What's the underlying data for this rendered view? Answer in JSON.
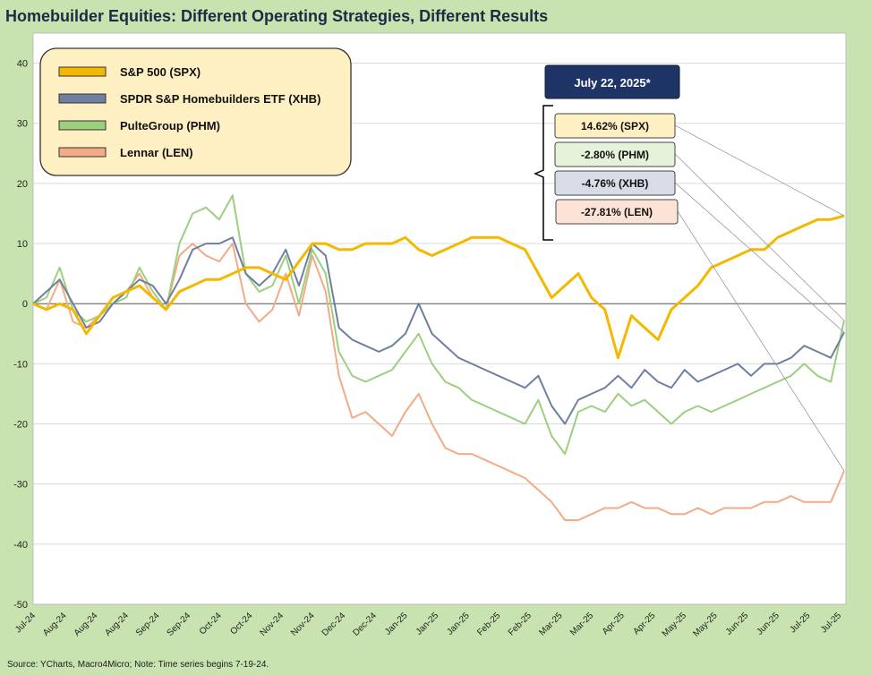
{
  "title": "Homebuilder Equities: Different Operating Strategies, Different Results",
  "source": "Source: YCharts, Macro4Micro; Note: Time series begins 7-19-24.",
  "date_box": "July 22, 2025*",
  "colors": {
    "spx": "#f5b800",
    "xhb": "#6e7fa0",
    "phm": "#9ccf7e",
    "len": "#f2ab84",
    "date_box": "#1f3466",
    "legend_bg": "#fff0c4",
    "plot_bg": "#ffffff",
    "page_bg": "#c9e3b0"
  },
  "chart_data": {
    "type": "line",
    "ylim": [
      -50,
      45
    ],
    "yticks": [
      40,
      30,
      20,
      10,
      0,
      -10,
      -20,
      -30,
      -40,
      -50
    ],
    "xtick_labels": [
      "Jul-24",
      "Aug-24",
      "Aug-24",
      "Aug-24",
      "Sep-24",
      "Sep-24",
      "Oct-24",
      "Oct-24",
      "Nov-24",
      "Nov-24",
      "Dec-24",
      "Dec-24",
      "Jan-25",
      "Jan-25",
      "Jan-25",
      "Feb-25",
      "Feb-25",
      "Mar-25",
      "Mar-25",
      "Apr-25",
      "Apr-25",
      "May-25",
      "May-25",
      "Jun-25",
      "Jun-25",
      "Jul-25",
      "Jul-25"
    ],
    "x_count": 62,
    "legend": [
      {
        "key": "spx",
        "label": "S&P 500 (SPX)"
      },
      {
        "key": "xhb",
        "label": "SPDR S&P Homebuilders ETF (XHB)"
      },
      {
        "key": "phm",
        "label": "PulteGroup (PHM)"
      },
      {
        "key": "len",
        "label": "Lennar (LEN)"
      }
    ],
    "end_labels": [
      {
        "key": "spx",
        "label": "14.62% (SPX)",
        "value": 14.62,
        "fill": "#fff0c4"
      },
      {
        "key": "phm",
        "label": "-2.80% (PHM)",
        "value": -2.8,
        "fill": "#e5f2da"
      },
      {
        "key": "xhb",
        "label": "-4.76% (XHB)",
        "value": -4.76,
        "fill": "#d7dce6"
      },
      {
        "key": "len",
        "label": "-27.81% (LEN)",
        "value": -27.81,
        "fill": "#fde3d6"
      }
    ],
    "series": [
      {
        "key": "spx",
        "name": "S&P 500 (SPX)",
        "values": [
          0,
          -1,
          0,
          -1,
          -5,
          -2,
          1,
          2,
          3,
          1,
          -1,
          2,
          3,
          4,
          4,
          5,
          6,
          6,
          5,
          4,
          7,
          10,
          10,
          9,
          9,
          10,
          10,
          10,
          11,
          9,
          8,
          9,
          10,
          11,
          11,
          11,
          10,
          9,
          5,
          1,
          3,
          5,
          1,
          -1,
          -9,
          -2,
          -4,
          -6,
          -1,
          1,
          3,
          6,
          7,
          8,
          9,
          9,
          11,
          12,
          13,
          14,
          14,
          14.62
        ]
      },
      {
        "key": "xhb",
        "name": "SPDR S&P Homebuilders ETF (XHB)",
        "values": [
          0,
          2,
          4,
          0,
          -4,
          -3,
          0,
          2,
          4,
          3,
          0,
          4,
          9,
          10,
          10,
          11,
          5,
          3,
          5,
          9,
          3,
          10,
          8,
          -4,
          -6,
          -7,
          -8,
          -7,
          -5,
          0,
          -5,
          -7,
          -9,
          -10,
          -11,
          -12,
          -13,
          -14,
          -12,
          -17,
          -20,
          -16,
          -15,
          -14,
          -12,
          -14,
          -11,
          -13,
          -14,
          -11,
          -13,
          -12,
          -11,
          -10,
          -12,
          -10,
          -10,
          -9,
          -7,
          -8,
          -9,
          -4.76
        ]
      },
      {
        "key": "phm",
        "name": "PulteGroup (PHM)",
        "values": [
          0,
          1,
          6,
          -1,
          -3,
          -2,
          0,
          1,
          6,
          2,
          -1,
          10,
          15,
          16,
          14,
          18,
          5,
          2,
          3,
          8,
          0,
          9,
          5,
          -8,
          -12,
          -13,
          -12,
          -11,
          -8,
          -5,
          -10,
          -13,
          -14,
          -16,
          -17,
          -18,
          -19,
          -20,
          -16,
          -22,
          -25,
          -18,
          -17,
          -18,
          -15,
          -17,
          -16,
          -18,
          -20,
          -18,
          -17,
          -18,
          -17,
          -16,
          -15,
          -14,
          -13,
          -12,
          -10,
          -12,
          -13,
          -2.8
        ]
      },
      {
        "key": "len",
        "name": "Lennar (LEN)",
        "values": [
          0,
          -1,
          4,
          -3,
          -4,
          -2,
          0,
          2,
          5,
          1,
          -1,
          8,
          10,
          8,
          7,
          10,
          0,
          -3,
          -1,
          5,
          -2,
          8,
          2,
          -12,
          -19,
          -18,
          -20,
          -22,
          -18,
          -15,
          -20,
          -24,
          -25,
          -25,
          -26,
          -27,
          -28,
          -29,
          -31,
          -33,
          -36,
          -36,
          -35,
          -34,
          -34,
          -33,
          -34,
          -34,
          -35,
          -35,
          -34,
          -35,
          -34,
          -34,
          -34,
          -33,
          -33,
          -32,
          -33,
          -33,
          -33,
          -27.81
        ]
      }
    ]
  }
}
